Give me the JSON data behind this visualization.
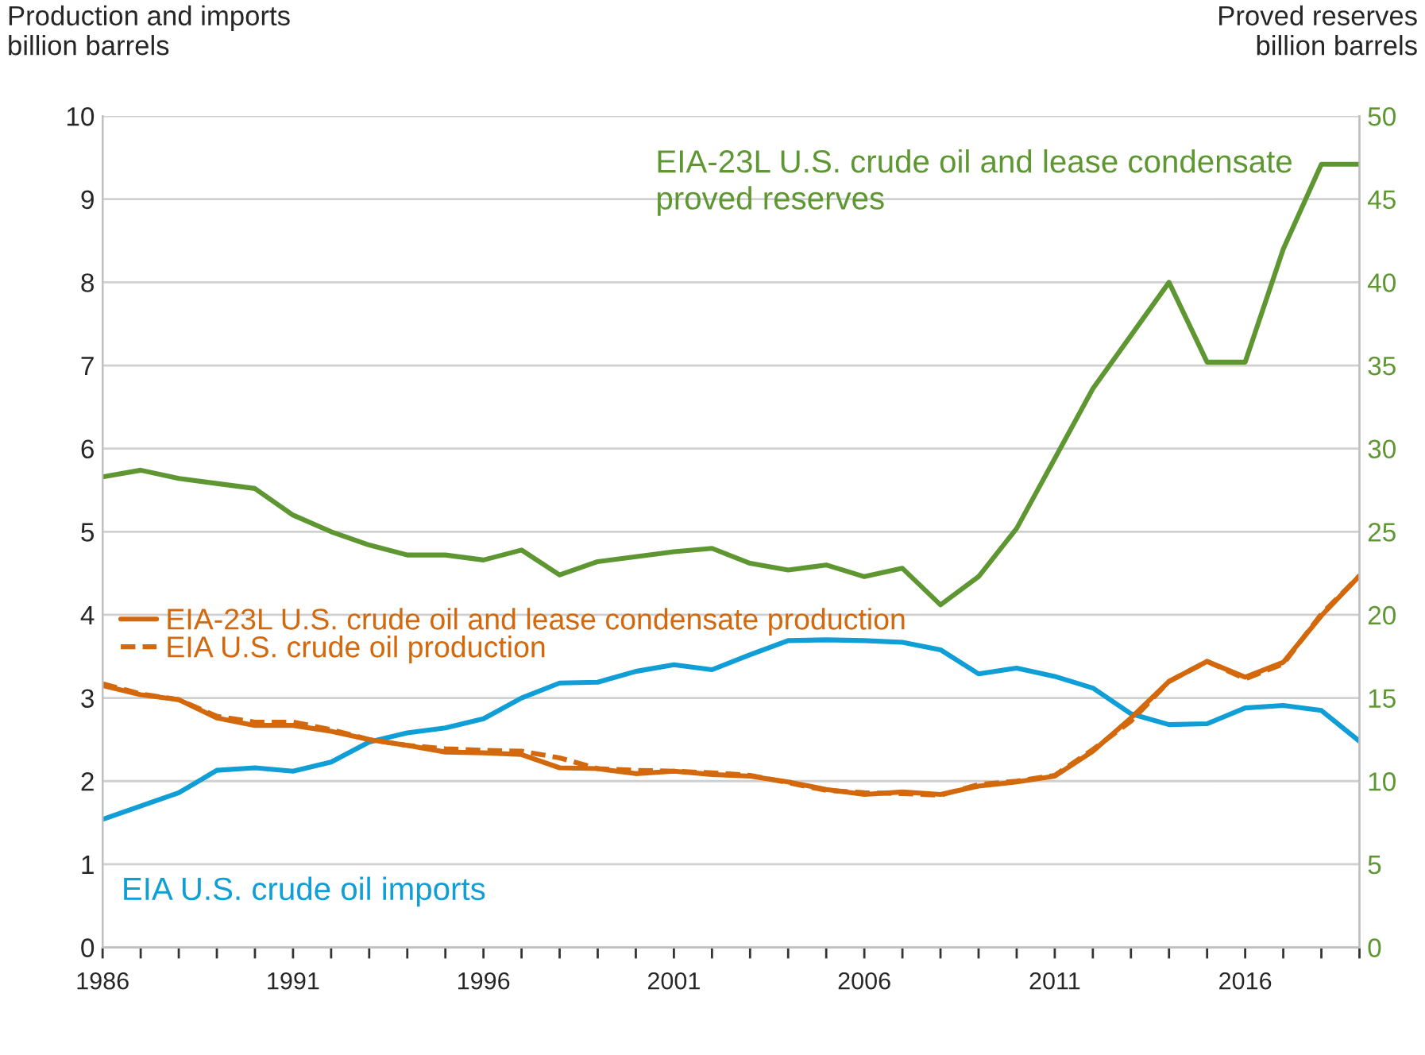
{
  "chart_data": {
    "type": "line",
    "ylabel": "Production and imports\nbillion barrels",
    "y2label": "Proved reserves\nbillion barrels",
    "x": [
      1986,
      1987,
      1988,
      1989,
      1990,
      1991,
      1992,
      1993,
      1994,
      1995,
      1996,
      1997,
      1998,
      1999,
      2000,
      2001,
      2002,
      2003,
      2004,
      2005,
      2006,
      2007,
      2008,
      2009,
      2010,
      2011,
      2012,
      2013,
      2014,
      2015,
      2016,
      2017,
      2018,
      2019
    ],
    "series": [
      {
        "name": "EIA-23L U.S. crude oil and lease condensate\nproved reserves",
        "color": "#5e9732",
        "axis": "y2",
        "line_style": "solid",
        "values": [
          28.3,
          28.7,
          28.2,
          27.9,
          27.6,
          26.0,
          25.0,
          24.2,
          23.6,
          23.6,
          23.3,
          23.9,
          22.4,
          23.2,
          23.5,
          23.8,
          24.0,
          23.1,
          22.7,
          23.0,
          22.3,
          22.8,
          20.6,
          22.3,
          25.2,
          29.4,
          33.6,
          36.8,
          40.0,
          35.2,
          35.2,
          42.0,
          47.1,
          47.1
        ]
      },
      {
        "name": "EIA U.S. crude oil imports",
        "color": "#0f9ed5",
        "line_style": "solid",
        "values": [
          1.54,
          1.7,
          1.86,
          2.13,
          2.16,
          2.12,
          2.23,
          2.47,
          2.58,
          2.64,
          2.75,
          3.0,
          3.18,
          3.19,
          3.32,
          3.4,
          3.34,
          3.52,
          3.69,
          3.7,
          3.69,
          3.67,
          3.58,
          3.29,
          3.36,
          3.26,
          3.12,
          2.81,
          2.68,
          2.69,
          2.88,
          2.91,
          2.85,
          2.48
        ]
      },
      {
        "name": "EIA-23L U.S. crude oil and lease condensate production",
        "color": "#d3680c",
        "line_style": "solid",
        "values": [
          3.15,
          3.04,
          2.98,
          2.76,
          2.67,
          2.67,
          2.6,
          2.5,
          2.43,
          2.35,
          2.34,
          2.32,
          2.16,
          2.15,
          2.09,
          2.12,
          2.08,
          2.06,
          1.99,
          1.9,
          1.84,
          1.87,
          1.84,
          1.94,
          1.99,
          2.06,
          2.36,
          2.76,
          3.2,
          3.44,
          3.25,
          3.43,
          3.99,
          4.47
        ]
      },
      {
        "name": "EIA U.S. crude oil production",
        "color": "#d3680c",
        "line_style": "dashed",
        "values": [
          3.17,
          3.05,
          2.98,
          2.78,
          2.71,
          2.71,
          2.62,
          2.5,
          2.43,
          2.39,
          2.37,
          2.36,
          2.28,
          2.15,
          2.13,
          2.12,
          2.1,
          2.07,
          1.98,
          1.89,
          1.86,
          1.85,
          1.83,
          1.96,
          2.0,
          2.07,
          2.38,
          2.72,
          3.2,
          3.44,
          3.23,
          3.41,
          4.01,
          4.47
        ]
      }
    ],
    "xlim": [
      1986,
      2019
    ],
    "xticks": [
      1986,
      {
        "value": 1987,
        "label": null
      },
      {
        "value": 1988,
        "label": null
      },
      {
        "value": 1989,
        "label": null
      },
      {
        "value": 1990,
        "label": null
      },
      1991,
      {
        "value": 1992,
        "label": null
      },
      {
        "value": 1993,
        "label": null
      },
      {
        "value": 1994,
        "label": null
      },
      {
        "value": 1995,
        "label": null
      },
      1996,
      {
        "value": 1997,
        "label": null
      },
      {
        "value": 1998,
        "label": null
      },
      {
        "value": 1999,
        "label": null
      },
      {
        "value": 2000,
        "label": null
      },
      2001,
      {
        "value": 2002,
        "label": null
      },
      {
        "value": 2003,
        "label": null
      },
      {
        "value": 2004,
        "label": null
      },
      {
        "value": 2005,
        "label": null
      },
      2006,
      {
        "value": 2007,
        "label": null
      },
      {
        "value": 2008,
        "label": null
      },
      {
        "value": 2009,
        "label": null
      },
      {
        "value": 2010,
        "label": null
      },
      2011,
      {
        "value": 2012,
        "label": null
      },
      {
        "value": 2013,
        "label": null
      },
      {
        "value": 2014,
        "label": null
      },
      {
        "value": 2015,
        "label": null
      },
      2016,
      {
        "value": 2017,
        "label": null
      },
      {
        "value": 2018,
        "label": null
      },
      {
        "value": 2019,
        "label": null
      }
    ],
    "ylim": [
      0,
      10
    ],
    "yticks": [
      0,
      1,
      2,
      3,
      4,
      5,
      6,
      7,
      8,
      9,
      10
    ],
    "y2lim": [
      0,
      50
    ],
    "y2ticks": [
      0,
      5,
      10,
      15,
      20,
      25,
      30,
      35,
      40,
      45,
      50
    ],
    "grid": "y",
    "legend": "left",
    "marker": "none"
  }
}
